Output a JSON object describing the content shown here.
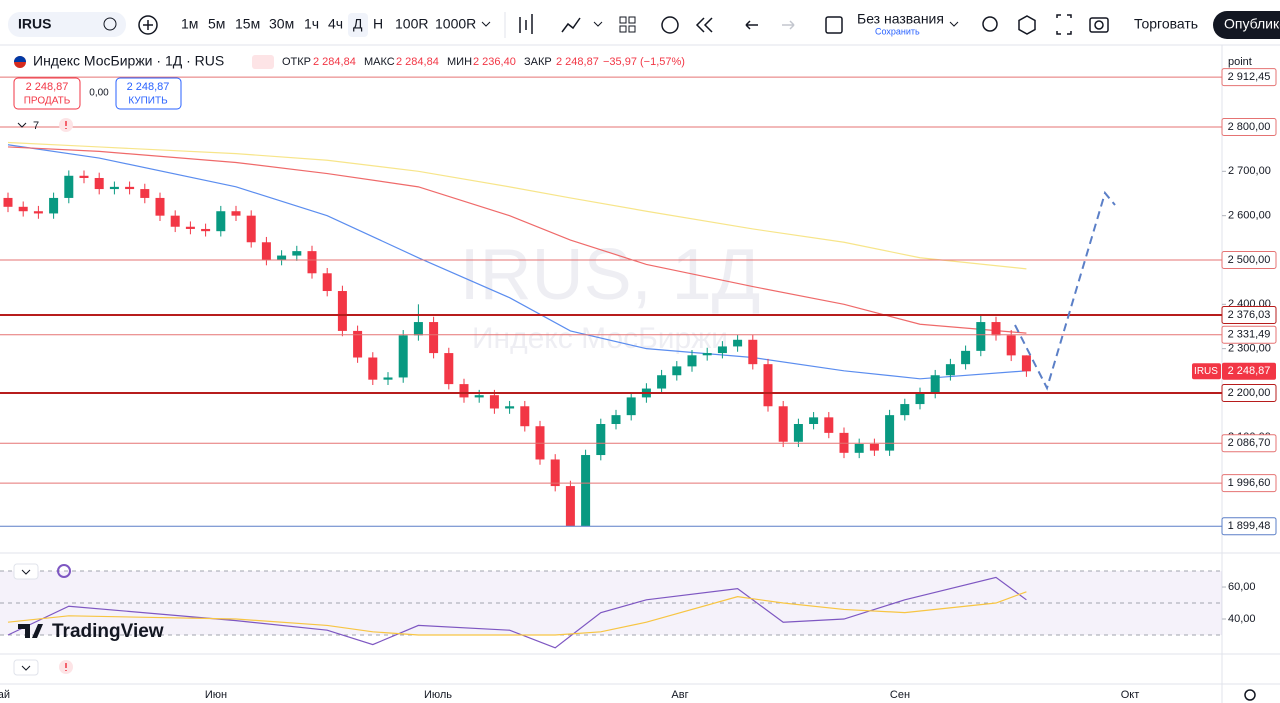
{
  "toolbar": {
    "symbol": "IRUS",
    "intervals": [
      "1м",
      "5м",
      "15м",
      "30м",
      "1ч",
      "4ч",
      "Д",
      "Н",
      "100R",
      "1000R"
    ],
    "layout_name": "Без названия",
    "save": "Сохранить",
    "trade": "Торговать",
    "publish": "Опублико"
  },
  "legend": {
    "title": "Индекс МосБиржи · 1Д · RUS",
    "fields": [
      {
        "label": "ОТКР",
        "value": "2 284,84"
      },
      {
        "label": "МАКС",
        "value": "2 284,84"
      },
      {
        "label": "МИН",
        "value": "2 236,40"
      },
      {
        "label": "ЗАКР",
        "value": "2 248,87"
      }
    ],
    "change": "−35,97 (−1,57%)"
  },
  "order": {
    "sell_price": "2 248,87",
    "sell": "ПРОДАТЬ",
    "spread": "0,00",
    "buy_price": "2 248,87",
    "buy": "КУПИТЬ"
  },
  "indicators_count": "7",
  "price_axis_unit": "point",
  "watermark": {
    "symbol": "IRUS, 1Д",
    "name": "Индекс МосБиржи"
  },
  "logo": "TradingView",
  "time_axis": [
    "ай",
    "Июн",
    "Июль",
    "Авг",
    "Сен",
    "Окт"
  ],
  "chart_data": [
    {
      "type": "candlestick",
      "up_color": "#089981",
      "down_color": "#f23645",
      "ylim": [
        1839,
        2985
      ],
      "yticks": [
        {
          "value": 2700,
          "label": "2 700,00"
        },
        {
          "value": 2600,
          "label": "2 600,00"
        },
        {
          "value": 2400,
          "label": "2 400,00"
        },
        {
          "value": 2300,
          "label": "2 300,00"
        },
        {
          "value": 2100,
          "label": "2 100,00"
        }
      ],
      "open": [
        2640,
        2620,
        2610,
        2605,
        2640,
        2690,
        2685,
        2660,
        2665,
        2660,
        2640,
        2600,
        2575,
        2570,
        2565,
        2610,
        2600,
        2540,
        2500,
        2510,
        2520,
        2470,
        2430,
        2340,
        2280,
        2230,
        2235,
        2330,
        2360,
        2290,
        2220,
        2190,
        2195,
        2165,
        2170,
        2125,
        2050,
        1990,
        1900,
        2060,
        2130,
        2150,
        2190,
        2210,
        2240,
        2260,
        2285,
        2290,
        2305,
        2320,
        2265,
        2170,
        2090,
        2130,
        2145,
        2110,
        2065,
        2085,
        2070,
        2150,
        2175,
        2200,
        2240,
        2265,
        2295,
        2360,
        2330,
        2284.84
      ],
      "high": [
        2652,
        2632,
        2622,
        2652,
        2702,
        2702,
        2697,
        2677,
        2677,
        2672,
        2652,
        2612,
        2587,
        2582,
        2622,
        2622,
        2612,
        2552,
        2522,
        2532,
        2532,
        2482,
        2442,
        2352,
        2292,
        2247,
        2342,
        2400,
        2372,
        2302,
        2232,
        2207,
        2207,
        2182,
        2182,
        2137,
        2062,
        2002,
        2072,
        2142,
        2162,
        2202,
        2222,
        2252,
        2272,
        2297,
        2302,
        2317,
        2332,
        2332,
        2277,
        2182,
        2142,
        2157,
        2157,
        2122,
        2097,
        2097,
        2162,
        2187,
        2212,
        2252,
        2277,
        2307,
        2376.03,
        2372,
        2342,
        2284.84
      ],
      "low": [
        2608,
        2598,
        2593,
        2593,
        2628,
        2673,
        2648,
        2648,
        2648,
        2628,
        2588,
        2563,
        2558,
        2553,
        2553,
        2588,
        2528,
        2488,
        2488,
        2498,
        2458,
        2418,
        2328,
        2268,
        2218,
        2218,
        2223,
        2318,
        2278,
        2208,
        2178,
        2178,
        2153,
        2153,
        2113,
        2038,
        1978,
        1899.48,
        1900,
        2048,
        2118,
        2138,
        2178,
        2198,
        2228,
        2248,
        2273,
        2278,
        2293,
        2253,
        2158,
        2078,
        2078,
        2118,
        2098,
        2053,
        2053,
        2058,
        2058,
        2138,
        2163,
        2188,
        2228,
        2253,
        2283,
        2318,
        2272,
        2236.4
      ],
      "close": [
        2620,
        2610,
        2605,
        2640,
        2690,
        2685,
        2660,
        2665,
        2660,
        2640,
        2600,
        2575,
        2570,
        2565,
        2610,
        2600,
        2540,
        2500,
        2510,
        2520,
        2470,
        2430,
        2340,
        2280,
        2230,
        2235,
        2330,
        2360,
        2290,
        2220,
        2190,
        2195,
        2165,
        2170,
        2125,
        2050,
        1990,
        1900,
        2060,
        2130,
        2150,
        2190,
        2210,
        2240,
        2260,
        2285,
        2290,
        2305,
        2320,
        2265,
        2170,
        2090,
        2130,
        2145,
        2110,
        2065,
        2085,
        2070,
        2150,
        2175,
        2200,
        2240,
        2265,
        2295,
        2360,
        2330,
        2284.84,
        2248.87
      ],
      "ma_x": [
        0,
        6,
        15,
        21,
        27,
        33,
        37,
        42,
        49,
        55,
        60,
        67
      ],
      "moving_averages": [
        {
          "color": "#5b8def",
          "values": [
            2760,
            2730,
            2665,
            2600,
            2505,
            2415,
            2340,
            2300,
            2280,
            2250,
            2232,
            2250
          ]
        },
        {
          "color": "#ef6a6a",
          "values": [
            2755,
            2745,
            2720,
            2695,
            2665,
            2600,
            2545,
            2490,
            2440,
            2400,
            2355,
            2335
          ]
        },
        {
          "color": "#f7e58a",
          "values": [
            2765,
            2755,
            2740,
            2725,
            2700,
            2665,
            2640,
            2610,
            2570,
            2540,
            2505,
            2480
          ]
        }
      ],
      "levels": [
        {
          "value": 2912.45,
          "label": "2 912,45",
          "color": "#e57373",
          "width": 1
        },
        {
          "value": 2800,
          "label": "2 800,00",
          "color": "#e57373",
          "width": 1
        },
        {
          "value": 2500,
          "label": "2 500,00",
          "color": "#e57373",
          "width": 1
        },
        {
          "value": 2376.03,
          "label": "2 376,03",
          "color": "#b71c1c",
          "width": 2
        },
        {
          "value": 2331.49,
          "label": "2 331,49",
          "color": "#e57373",
          "width": 1
        },
        {
          "value": 2200,
          "label": "2 200,00",
          "color": "#b71c1c",
          "width": 2
        },
        {
          "value": 2086.7,
          "label": "2 086,70",
          "color": "#e57373",
          "width": 1
        },
        {
          "value": 1996.6,
          "label": "1 996,60",
          "color": "#e57373",
          "width": 1
        },
        {
          "value": 1899.48,
          "label": "1 899,48",
          "color": "#5b7fc7",
          "width": 1
        }
      ],
      "last": {
        "name": "IRUS",
        "value": 2248.87,
        "label": "2 248,87",
        "color": "#f23645"
      }
    },
    {
      "type": "line",
      "ylim": [
        20,
        79.4
      ],
      "yticks": [
        {
          "value": 60,
          "label": "60,00"
        },
        {
          "value": 40,
          "label": "40,00"
        }
      ],
      "bands": [
        70,
        50,
        30
      ],
      "x": [
        0,
        4,
        15,
        21,
        24,
        27,
        33,
        36,
        39,
        42,
        48,
        51,
        55,
        59,
        65,
        67
      ],
      "series": [
        {
          "color": "#7e57c2",
          "values": [
            30,
            48,
            39,
            33,
            24,
            36,
            33,
            22,
            44,
            52,
            59,
            38,
            40,
            52,
            66,
            52
          ]
        },
        {
          "color": "#f7c543",
          "values": [
            38,
            42,
            40,
            36,
            32,
            30,
            30,
            30,
            32,
            38,
            54,
            50,
            46,
            44,
            50,
            57
          ]
        }
      ]
    }
  ]
}
